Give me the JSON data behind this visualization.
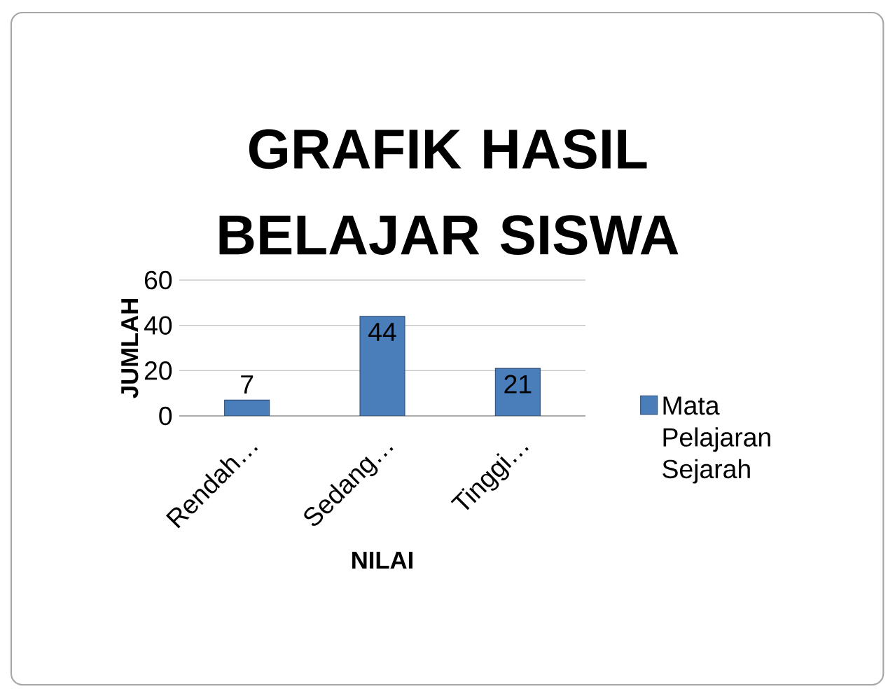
{
  "chart_data": {
    "type": "bar",
    "title": "GRAFIK HASIL BELAJAR SISWA",
    "xlabel": "NILAI",
    "ylabel": "JUMLAH",
    "categories": [
      "Rendah…",
      "Sedang…",
      "Tinggi…"
    ],
    "series": [
      {
        "name": "Mata Pelajaran Sejarah",
        "color": "#4a7ebb",
        "values": [
          7,
          44,
          21
        ]
      }
    ],
    "ylim": [
      0,
      60
    ],
    "yticks": [
      0,
      20,
      40,
      60
    ],
    "grid": "y",
    "legend": "right",
    "data_labels": true
  }
}
